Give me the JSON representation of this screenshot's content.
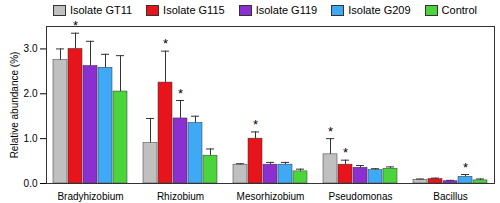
{
  "chart_data": {
    "type": "bar",
    "y_label": "Relative abundance (%)",
    "categories": [
      "Bradyhizobium",
      "Rhizobium",
      "Mesorhizobium",
      "Pseudomonas",
      "Bacillus"
    ],
    "series": [
      {
        "name": "Isolate GT11",
        "color": "#c0c0c0",
        "values": [
          2.75,
          0.9,
          0.42,
          0.65,
          0.08
        ],
        "errors": [
          0.25,
          0.55,
          0.02,
          0.35,
          0.02
        ],
        "annotations": [
          null,
          null,
          null,
          "*",
          null
        ]
      },
      {
        "name": "Isolate G115",
        "color": "#e8141c",
        "values": [
          3.0,
          2.25,
          1.0,
          0.42,
          0.1
        ],
        "errors": [
          0.35,
          0.7,
          0.15,
          0.1,
          0.02
        ],
        "annotations": [
          "*",
          "*",
          "*",
          "*",
          null
        ]
      },
      {
        "name": "Isolate G119",
        "color": "#8c2fd0",
        "values": [
          2.62,
          1.45,
          0.42,
          0.35,
          0.05
        ],
        "errors": [
          0.55,
          0.4,
          0.05,
          0.05,
          0.02
        ],
        "annotations": [
          null,
          "*",
          null,
          null,
          null
        ]
      },
      {
        "name": "Isolate G209",
        "color": "#3fa9f5",
        "values": [
          2.58,
          1.35,
          0.42,
          0.3,
          0.15
        ],
        "errors": [
          0.3,
          0.15,
          0.05,
          0.03,
          0.05
        ],
        "annotations": [
          null,
          null,
          null,
          null,
          "*"
        ]
      },
      {
        "name": "Control",
        "color": "#4cd43c",
        "values": [
          2.05,
          0.62,
          0.27,
          0.33,
          0.07
        ],
        "errors": [
          0.8,
          0.15,
          0.05,
          0.04,
          0.03
        ],
        "annotations": [
          null,
          null,
          null,
          null,
          null
        ]
      }
    ],
    "ylim": [
      0,
      3.5
    ],
    "yticks": [
      0,
      1,
      2,
      3
    ],
    "legend": "top"
  }
}
